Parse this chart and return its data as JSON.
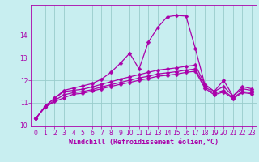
{
  "xlabel": "Windchill (Refroidissement éolien,°C)",
  "background_color": "#c8eef0",
  "line_color": "#aa00aa",
  "grid_color": "#99cccc",
  "x_values": [
    0,
    1,
    2,
    3,
    4,
    5,
    6,
    7,
    8,
    9,
    10,
    11,
    12,
    13,
    14,
    15,
    16,
    17,
    18,
    19,
    20,
    21,
    22,
    23
  ],
  "series": [
    [
      10.3,
      10.85,
      11.2,
      11.55,
      11.65,
      11.75,
      11.85,
      12.05,
      12.35,
      12.75,
      13.2,
      12.5,
      13.7,
      14.35,
      14.82,
      14.88,
      14.85,
      13.4,
      11.82,
      11.5,
      12.0,
      11.3,
      11.72,
      11.62
    ],
    [
      10.3,
      10.85,
      11.2,
      11.5,
      11.55,
      11.6,
      11.7,
      11.82,
      11.93,
      12.05,
      12.15,
      12.25,
      12.35,
      12.45,
      12.5,
      12.55,
      12.62,
      12.67,
      11.82,
      11.5,
      11.72,
      11.3,
      11.62,
      11.55
    ],
    [
      10.3,
      10.82,
      11.1,
      11.35,
      11.45,
      11.5,
      11.58,
      11.7,
      11.8,
      11.9,
      12.0,
      12.1,
      12.18,
      12.28,
      12.33,
      12.38,
      12.45,
      12.5,
      11.72,
      11.42,
      11.55,
      11.22,
      11.5,
      11.45
    ],
    [
      10.3,
      10.8,
      11.05,
      11.22,
      11.38,
      11.42,
      11.52,
      11.62,
      11.72,
      11.82,
      11.9,
      12.0,
      12.08,
      12.18,
      12.22,
      12.27,
      12.35,
      12.4,
      11.65,
      11.35,
      11.48,
      11.18,
      11.45,
      11.4
    ]
  ],
  "ylim": [
    9.95,
    15.35
  ],
  "xlim": [
    -0.5,
    23.5
  ],
  "yticks": [
    10,
    11,
    12,
    13,
    14
  ],
  "xticks": [
    0,
    1,
    2,
    3,
    4,
    5,
    6,
    7,
    8,
    9,
    10,
    11,
    12,
    13,
    14,
    15,
    16,
    17,
    18,
    19,
    20,
    21,
    22,
    23
  ],
  "markersize": 2.5,
  "linewidth": 0.9,
  "tick_fontsize": 5.5,
  "xlabel_fontsize": 6.0
}
